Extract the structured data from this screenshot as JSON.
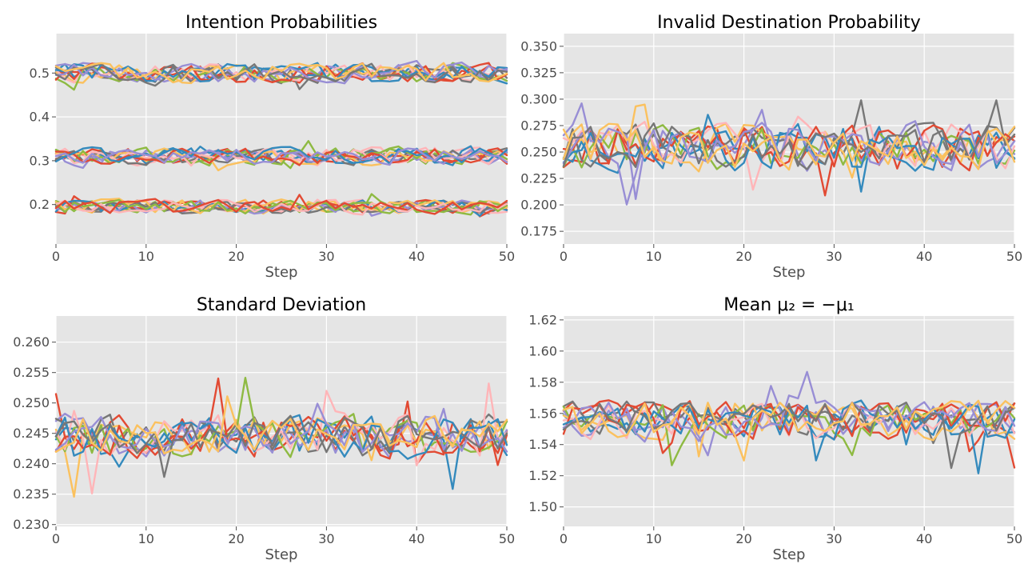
{
  "chart_data": [
    {
      "type": "line",
      "title": "Intention Probabilities",
      "xlabel": "Step",
      "ylabel": "",
      "xlim": [
        0,
        50
      ],
      "ylim": [
        0.11,
        0.59
      ],
      "xticks": [
        0,
        10,
        20,
        30,
        40,
        50
      ],
      "yticks": [
        0.2,
        0.3,
        0.4,
        0.5
      ],
      "ytick_decimals": 1,
      "grid": true,
      "colors": [
        "#E24A33",
        "#348ABD",
        "#988ED5",
        "#777777",
        "#FBC15E",
        "#8EBA42",
        "#FFB5B8"
      ],
      "generator": {
        "seed": 11,
        "lines_per_level": 12,
        "levels": [
          0.5,
          0.31,
          0.195
        ],
        "amplitude": [
          0.022,
          0.02,
          0.016
        ],
        "spikes": 0.02
      }
    },
    {
      "type": "line",
      "title": "Invalid Destination Probability",
      "xlabel": "Step",
      "ylabel": "",
      "xlim": [
        0,
        50
      ],
      "ylim": [
        0.163,
        0.362
      ],
      "xticks": [
        0,
        10,
        20,
        30,
        40,
        50
      ],
      "yticks": [
        0.175,
        0.2,
        0.225,
        0.25,
        0.275,
        0.3,
        0.325,
        0.35
      ],
      "ytick_decimals": 3,
      "grid": true,
      "colors": [
        "#E24A33",
        "#348ABD",
        "#988ED5",
        "#777777",
        "#FBC15E",
        "#8EBA42",
        "#FFB5B8"
      ],
      "generator": {
        "seed": 23,
        "lines_per_level": 12,
        "levels": [
          0.255
        ],
        "amplitude": [
          0.022
        ],
        "spikes": 0.045
      }
    },
    {
      "type": "line",
      "title": "Standard Deviation",
      "xlabel": "Step",
      "ylabel": "",
      "xlim": [
        0,
        50
      ],
      "ylim": [
        0.2297,
        0.2643
      ],
      "xticks": [
        0,
        10,
        20,
        30,
        40,
        50
      ],
      "yticks": [
        0.23,
        0.235,
        0.24,
        0.245,
        0.25,
        0.255,
        0.26
      ],
      "ytick_decimals": 3,
      "grid": true,
      "colors": [
        "#E24A33",
        "#348ABD",
        "#988ED5",
        "#777777",
        "#FBC15E",
        "#8EBA42",
        "#FFB5B8"
      ],
      "generator": {
        "seed": 37,
        "lines_per_level": 12,
        "levels": [
          0.2445
        ],
        "amplitude": [
          0.0035
        ],
        "spikes": 0.008
      }
    },
    {
      "type": "line",
      "title": "Mean μ₂ = −μ₁",
      "xlabel": "Step",
      "ylabel": "",
      "xlim": [
        0,
        50
      ],
      "ylim": [
        1.4875,
        1.6225
      ],
      "xticks": [
        0,
        10,
        20,
        30,
        40,
        50
      ],
      "yticks": [
        1.5,
        1.52,
        1.54,
        1.56,
        1.58,
        1.6,
        1.62
      ],
      "ytick_decimals": 2,
      "grid": true,
      "colors": [
        "#E24A33",
        "#348ABD",
        "#988ED5",
        "#777777",
        "#FBC15E",
        "#8EBA42",
        "#FFB5B8"
      ],
      "generator": {
        "seed": 53,
        "lines_per_level": 12,
        "levels": [
          1.556
        ],
        "amplitude": [
          0.012
        ],
        "spikes": 0.03
      }
    }
  ]
}
